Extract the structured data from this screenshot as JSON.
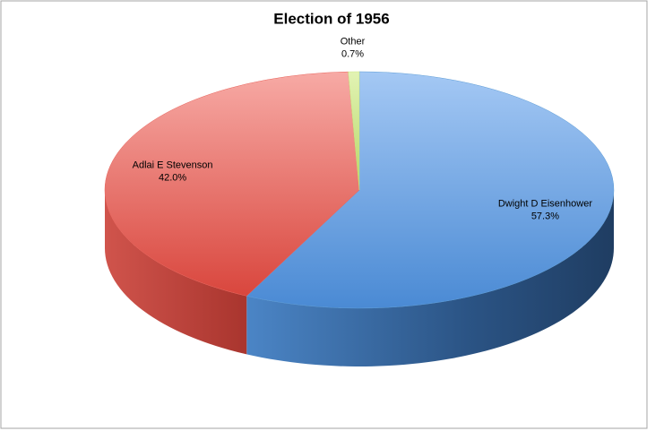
{
  "chart_data": {
    "type": "pie",
    "title": "Election of 1956",
    "categories": [
      "Dwight D Eisenhower",
      "Adlai E Stevenson",
      "Other"
    ],
    "values": [
      57.3,
      42.0,
      0.7
    ],
    "value_labels": [
      "57.3%",
      "42.0%",
      "0.7%"
    ],
    "colors": [
      "#5b9bd5",
      "#e8625a",
      "#c9e67f"
    ]
  }
}
